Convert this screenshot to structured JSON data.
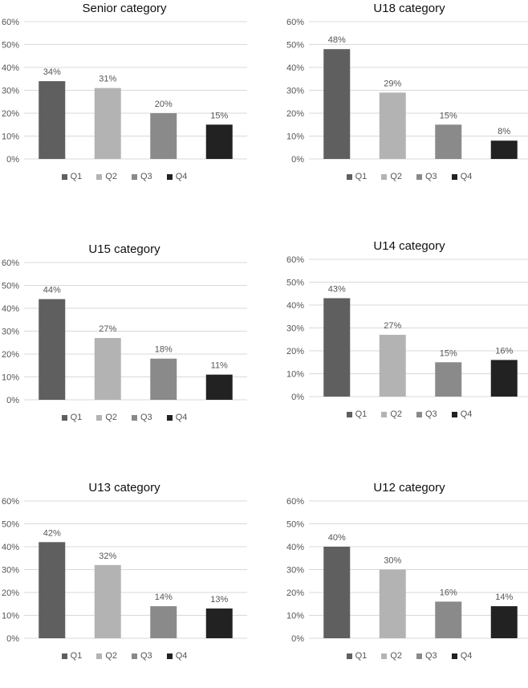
{
  "chart_data": [
    {
      "type": "bar",
      "title": "Senior category",
      "categories": [
        "Q1",
        "Q2",
        "Q3",
        "Q4"
      ],
      "values": [
        34,
        31,
        20,
        15
      ],
      "data_labels": [
        "34%",
        "31%",
        "20%",
        "15%"
      ],
      "yticks": [
        "0%",
        "10%",
        "20%",
        "30%",
        "40%",
        "50%",
        "60%"
      ],
      "ylim": [
        0,
        60
      ],
      "legend": "bottom"
    },
    {
      "type": "bar",
      "title": "U18 category",
      "categories": [
        "Q1",
        "Q2",
        "Q3",
        "Q4"
      ],
      "values": [
        48,
        29,
        15,
        8
      ],
      "data_labels": [
        "48%",
        "29%",
        "15%",
        "8%"
      ],
      "yticks": [
        "0%",
        "10%",
        "20%",
        "30%",
        "40%",
        "50%",
        "60%"
      ],
      "ylim": [
        0,
        60
      ],
      "legend": "bottom"
    },
    {
      "type": "bar",
      "title": "U15 category",
      "categories": [
        "Q1",
        "Q2",
        "Q3",
        "Q4"
      ],
      "values": [
        44,
        27,
        18,
        11
      ],
      "data_labels": [
        "44%",
        "27%",
        "18%",
        "11%"
      ],
      "yticks": [
        "0%",
        "10%",
        "20%",
        "30%",
        "40%",
        "50%",
        "60%"
      ],
      "ylim": [
        0,
        60
      ],
      "legend": "bottom"
    },
    {
      "type": "bar",
      "title": "U14 category",
      "categories": [
        "Q1",
        "Q2",
        "Q3",
        "Q4"
      ],
      "values": [
        43,
        27,
        15,
        16
      ],
      "data_labels": [
        "43%",
        "27%",
        "15%",
        "16%"
      ],
      "yticks": [
        "0%",
        "10%",
        "20%",
        "30%",
        "40%",
        "50%",
        "60%"
      ],
      "ylim": [
        0,
        60
      ],
      "legend": "bottom"
    },
    {
      "type": "bar",
      "title": "U13 category",
      "categories": [
        "Q1",
        "Q2",
        "Q3",
        "Q4"
      ],
      "values": [
        42,
        32,
        14,
        13
      ],
      "data_labels": [
        "42%",
        "32%",
        "14%",
        "13%"
      ],
      "yticks": [
        "0%",
        "10%",
        "20%",
        "30%",
        "40%",
        "50%",
        "60%"
      ],
      "ylim": [
        0,
        60
      ],
      "legend": "bottom"
    },
    {
      "type": "bar",
      "title": "U12 category",
      "categories": [
        "Q1",
        "Q2",
        "Q3",
        "Q4"
      ],
      "values": [
        40,
        30,
        16,
        14
      ],
      "data_labels": [
        "40%",
        "30%",
        "16%",
        "14%"
      ],
      "yticks": [
        "0%",
        "10%",
        "20%",
        "30%",
        "40%",
        "50%",
        "60%"
      ],
      "ylim": [
        0,
        60
      ],
      "legend": "bottom"
    }
  ],
  "colors": {
    "Q1": "#5f5f5f",
    "Q2": "#b3b3b3",
    "Q3": "#8a8a8a",
    "Q4": "#222222",
    "grid": "#d9d9d9"
  }
}
